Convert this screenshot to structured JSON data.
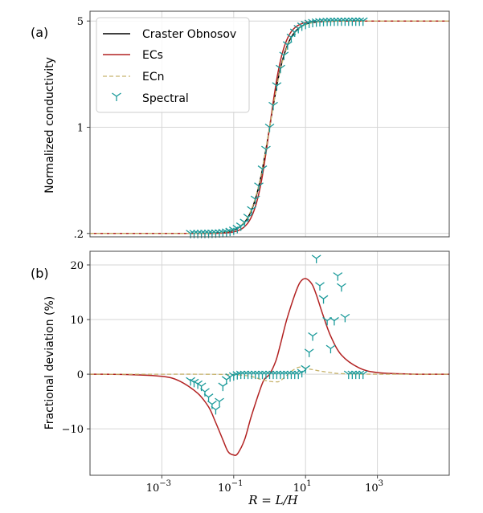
{
  "chart_data": [
    {
      "type": "line",
      "panel_label": "(a)",
      "ylabel": "Normalized conductivity",
      "xscale": "log",
      "yscale": "log",
      "xlim": [
        1e-05,
        100000
      ],
      "ylim": [
        0.19,
        5.8
      ],
      "yticks": [
        {
          "value": 0.2,
          "label": ".2"
        },
        {
          "value": 1,
          "label": "1"
        },
        {
          "value": 5,
          "label": "5"
        }
      ],
      "grid": true,
      "legend_location": "top-left",
      "legend": [
        {
          "name": "Craster Obnosov",
          "style": "solid",
          "color": "#000000"
        },
        {
          "name": "ECs",
          "style": "solid",
          "color": "#b22222"
        },
        {
          "name": "ECn",
          "style": "dashed",
          "color": "#c8b46e"
        },
        {
          "name": "Spectral",
          "style": "marker",
          "color": "#1a9a9a"
        }
      ],
      "series": [
        {
          "name": "Craster Obnosov",
          "model": "sigmoid",
          "low": 0.2,
          "high": 5,
          "center": 1,
          "slope": 0.9
        },
        {
          "name": "ECs",
          "model": "sigmoid",
          "low": 0.2,
          "high": 5,
          "center": 1,
          "slope": 1.06
        },
        {
          "name": "ECn",
          "model": "sigmoid",
          "low": 0.2,
          "high": 5,
          "center": 1,
          "slope": 0.88
        },
        {
          "name": "Spectral",
          "x": [
            0.0063,
            0.0079,
            0.01,
            0.0126,
            0.0158,
            0.02,
            0.025,
            0.0316,
            0.04,
            0.05,
            0.063,
            0.079,
            0.1,
            0.126,
            0.158,
            0.2,
            0.25,
            0.316,
            0.4,
            0.5,
            0.63,
            0.79,
            1,
            1.26,
            1.58,
            2,
            2.5,
            3.16,
            4,
            5,
            6.3,
            7.9,
            10,
            12.6,
            15.8,
            20,
            25,
            31.6,
            40,
            50,
            63,
            79,
            100,
            126,
            158,
            200,
            250,
            316,
            398
          ],
          "ratio": [
            1,
            1,
            1,
            1,
            1,
            1,
            1,
            1,
            1,
            1,
            1,
            1,
            1,
            1,
            1,
            1,
            1,
            1,
            1,
            1,
            1,
            1,
            1,
            1,
            1,
            1,
            1,
            1,
            1,
            1,
            1,
            1,
            1,
            1,
            1,
            1,
            1,
            1,
            1,
            1,
            1,
            1,
            1,
            1,
            1,
            1,
            1,
            1,
            1
          ]
        }
      ]
    },
    {
      "type": "line",
      "panel_label": "(b)",
      "ylabel": "Fractional deviation (%)",
      "xlabel": "R = L/H",
      "xscale": "log",
      "xlim": [
        1e-05,
        100000
      ],
      "ylim": [
        -18.5,
        22.5
      ],
      "yticks": [
        {
          "value": -10,
          "label": "−10"
        },
        {
          "value": 0,
          "label": "0"
        },
        {
          "value": 10,
          "label": "10"
        },
        {
          "value": 20,
          "label": "20"
        }
      ],
      "xticks": [
        {
          "exp": -3,
          "base": "10"
        },
        {
          "exp": -1,
          "base": "10"
        },
        {
          "exp": 1,
          "base": "10"
        },
        {
          "exp": 3,
          "base": "10"
        }
      ],
      "grid": true,
      "series": [
        {
          "name": "ECs",
          "color": "#b22222",
          "x": [
            1e-05,
            0.0001,
            0.001,
            0.003,
            0.01,
            0.02,
            0.03,
            0.05,
            0.07,
            0.1,
            0.13,
            0.2,
            0.3,
            0.5,
            0.7,
            1,
            1.5,
            2,
            3,
            5,
            7,
            10,
            15,
            20,
            30,
            50,
            100,
            300,
            1000,
            10000,
            100000
          ],
          "y": [
            0,
            -0.05,
            -0.4,
            -1.2,
            -3.5,
            -6,
            -8.5,
            -12,
            -14.2,
            -14.8,
            -14.5,
            -12,
            -8,
            -3.5,
            -1,
            0,
            2.5,
            5.5,
            10,
            14.5,
            16.8,
            17.5,
            16.5,
            14.5,
            11,
            7,
            3.5,
            1.2,
            0.3,
            0.02,
            0
          ]
        },
        {
          "name": "ECn",
          "color": "#c8b46e",
          "x": [
            1e-05,
            0.001,
            0.01,
            0.1,
            0.3,
            0.6,
            1,
            1.5,
            2,
            4,
            6,
            8,
            10,
            20,
            50,
            100,
            1000,
            100000
          ],
          "y": [
            0,
            0,
            0,
            -0.1,
            -0.4,
            -1,
            -1.3,
            -1.4,
            -1.2,
            0.5,
            1.2,
            1.3,
            1.1,
            0.7,
            0.3,
            0.1,
            0,
            0
          ]
        },
        {
          "name": "Spectral",
          "color": "#1a9a9a",
          "x": [
            0.0063,
            0.0079,
            0.01,
            0.0126,
            0.0158,
            0.02,
            0.025,
            0.0316,
            0.04,
            0.05,
            0.063,
            0.079,
            0.1,
            0.126,
            0.158,
            0.2,
            0.25,
            0.316,
            0.4,
            0.5,
            0.63,
            0.79,
            1,
            1.26,
            1.58,
            2,
            2.5,
            3.16,
            4,
            5,
            6.3,
            7.9,
            10,
            12.6,
            15.8,
            20,
            25,
            31.6,
            40,
            50,
            63,
            79,
            100,
            126,
            158,
            200,
            250,
            316,
            398
          ],
          "y": [
            -1.2,
            -1.5,
            -1.8,
            -2.2,
            -3.2,
            -4.2,
            -5.5,
            -6.5,
            -5,
            -2.2,
            -1,
            -0.5,
            -0.3,
            -0.1,
            0,
            0,
            0,
            0,
            0,
            0,
            0,
            0,
            0,
            0,
            0,
            0,
            0,
            0,
            0,
            0,
            0,
            0.3,
            1,
            4,
            7,
            21.2,
            16.2,
            13.8,
            9.8,
            4.7,
            9.8,
            18,
            16,
            10.4,
            0,
            0,
            0,
            0,
            0
          ]
        }
      ]
    }
  ]
}
